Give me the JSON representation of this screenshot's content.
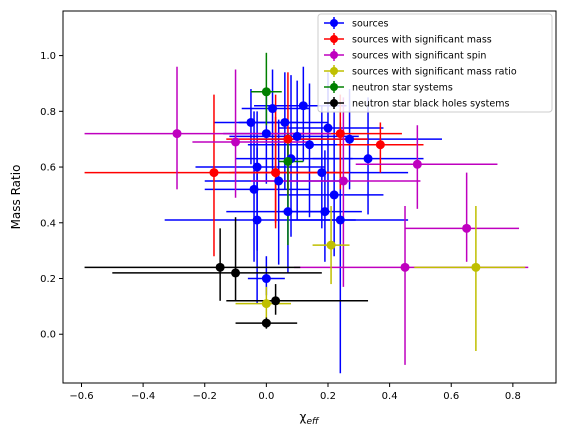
{
  "chart_data": {
    "type": "scatter",
    "title": "",
    "xlabel_base": "χ",
    "xlabel_sub": "eff",
    "ylabel": "Mass Ratio",
    "xlim": [
      -0.66,
      0.94
    ],
    "ylim": [
      -0.175,
      1.16
    ],
    "xticks": [
      -0.6,
      -0.4,
      -0.2,
      0.0,
      0.2,
      0.4,
      0.6,
      0.8
    ],
    "xtick_labels": [
      "−0.6",
      "−0.4",
      "−0.2",
      "0.0",
      "0.2",
      "0.4",
      "0.6",
      "0.8"
    ],
    "yticks": [
      0.0,
      0.2,
      0.4,
      0.6,
      0.8,
      1.0
    ],
    "ytick_labels": [
      "0.0",
      "0.2",
      "0.4",
      "0.6",
      "0.8",
      "1.0"
    ],
    "grid": false,
    "legend_position": "top-right",
    "series": [
      {
        "name": "sources",
        "color": "#0000ff",
        "points": [
          {
            "x": -0.05,
            "y": 0.76,
            "xlo": 0.12,
            "xhi": 0.15,
            "ylo": 0.15,
            "yhi": 0.12
          },
          {
            "x": 0.0,
            "y": 0.72,
            "xlo": 0.14,
            "xhi": 0.12,
            "ylo": 0.18,
            "yhi": 0.14
          },
          {
            "x": 0.02,
            "y": 0.81,
            "xlo": 0.1,
            "xhi": 0.12,
            "ylo": 0.22,
            "yhi": 0.14
          },
          {
            "x": 0.06,
            "y": 0.76,
            "xlo": 0.15,
            "xhi": 0.14,
            "ylo": 0.24,
            "yhi": 0.18
          },
          {
            "x": 0.1,
            "y": 0.71,
            "xlo": 0.22,
            "xhi": 0.2,
            "ylo": 0.3,
            "yhi": 0.2
          },
          {
            "x": 0.14,
            "y": 0.68,
            "xlo": 0.2,
            "xhi": 0.18,
            "ylo": 0.26,
            "yhi": 0.22
          },
          {
            "x": 0.2,
            "y": 0.74,
            "xlo": 0.16,
            "xhi": 0.18,
            "ylo": 0.3,
            "yhi": 0.2
          },
          {
            "x": 0.08,
            "y": 0.63,
            "xlo": 0.18,
            "xhi": 0.2,
            "ylo": 0.28,
            "yhi": 0.3
          },
          {
            "x": -0.03,
            "y": 0.6,
            "xlo": 0.2,
            "xhi": 0.22,
            "ylo": 0.3,
            "yhi": 0.2
          },
          {
            "x": 0.04,
            "y": 0.55,
            "xlo": 0.24,
            "xhi": 0.2,
            "ylo": 0.3,
            "yhi": 0.22
          },
          {
            "x": 0.18,
            "y": 0.58,
            "xlo": 0.3,
            "xhi": 0.28,
            "ylo": 0.2,
            "yhi": 0.24
          },
          {
            "x": -0.04,
            "y": 0.52,
            "xlo": 0.16,
            "xhi": 0.18,
            "ylo": 0.26,
            "yhi": 0.28
          },
          {
            "x": 0.22,
            "y": 0.5,
            "xlo": 0.18,
            "xhi": 0.16,
            "ylo": 0.22,
            "yhi": 0.3
          },
          {
            "x": 0.24,
            "y": 0.41,
            "xlo": 0.16,
            "xhi": 0.22,
            "ylo": 0.55,
            "yhi": 0.35
          },
          {
            "x": 0.19,
            "y": 0.44,
            "xlo": 0.14,
            "xhi": 0.12,
            "ylo": 0.18,
            "yhi": 0.22
          },
          {
            "x": 0.07,
            "y": 0.44,
            "xlo": 0.2,
            "xhi": 0.12,
            "ylo": 0.22,
            "yhi": 0.24
          },
          {
            "x": -0.03,
            "y": 0.41,
            "xlo": 0.3,
            "xhi": 0.32,
            "ylo": 0.3,
            "yhi": 0.26
          },
          {
            "x": 0.0,
            "y": 0.2,
            "xlo": 0.06,
            "xhi": 0.06,
            "ylo": 0.06,
            "yhi": 0.08
          },
          {
            "x": 0.33,
            "y": 0.63,
            "xlo": 0.18,
            "xhi": 0.18,
            "ylo": 0.2,
            "yhi": 0.22
          },
          {
            "x": 0.12,
            "y": 0.82,
            "xlo": 0.16,
            "xhi": 0.14,
            "ylo": 0.2,
            "yhi": 0.14
          },
          {
            "x": 0.27,
            "y": 0.7,
            "xlo": 0.3,
            "xhi": 0.3,
            "ylo": 0.18,
            "yhi": 0.18
          }
        ]
      },
      {
        "name": "sources with significant mass",
        "color": "#ff0000",
        "points": [
          {
            "x": -0.17,
            "y": 0.58,
            "xlo": 0.42,
            "xhi": 0.4,
            "ylo": 0.3,
            "yhi": 0.28
          },
          {
            "x": 0.03,
            "y": 0.58,
            "xlo": 0.14,
            "xhi": 0.22,
            "ylo": 0.2,
            "yhi": 0.2
          },
          {
            "x": 0.07,
            "y": 0.7,
            "xlo": 0.2,
            "xhi": 0.26,
            "ylo": 0.2,
            "yhi": 0.24
          },
          {
            "x": 0.24,
            "y": 0.72,
            "xlo": 0.16,
            "xhi": 0.2,
            "ylo": 0.2,
            "yhi": 0.14
          },
          {
            "x": 0.37,
            "y": 0.68,
            "xlo": 0.14,
            "xhi": 0.14,
            "ylo": 0.1,
            "yhi": 0.08
          },
          {
            "x": 0.03,
            "y": 0.58,
            "xlo": 0.2,
            "xhi": 0.24,
            "ylo": 0.18,
            "yhi": 0.28
          }
        ]
      },
      {
        "name": "sources with significant spin",
        "color": "#bf00bf",
        "points": [
          {
            "x": -0.29,
            "y": 0.72,
            "xlo": 0.3,
            "xhi": 0.5,
            "ylo": 0.2,
            "yhi": 0.24
          },
          {
            "x": -0.1,
            "y": 0.69,
            "xlo": 0.14,
            "xhi": 0.24,
            "ylo": 0.2,
            "yhi": 0.26
          },
          {
            "x": 0.25,
            "y": 0.55,
            "xlo": 0.3,
            "xhi": 0.25,
            "ylo": 0.38,
            "yhi": 0.3
          },
          {
            "x": 0.49,
            "y": 0.61,
            "xlo": 0.2,
            "xhi": 0.26,
            "ylo": 0.16,
            "yhi": 0.14
          },
          {
            "x": 0.65,
            "y": 0.38,
            "xlo": 0.2,
            "xhi": 0.17,
            "ylo": 0.12,
            "yhi": 0.2
          },
          {
            "x": 0.45,
            "y": 0.24,
            "xlo": 0.36,
            "xhi": 0.4,
            "ylo": 0.35,
            "yhi": 0.22
          }
        ]
      },
      {
        "name": "sources with significant mass ratio",
        "color": "#bfbf00",
        "points": [
          {
            "x": 0.21,
            "y": 0.32,
            "xlo": 0.06,
            "xhi": 0.06,
            "ylo": 0.14,
            "yhi": 0.14
          },
          {
            "x": 0.68,
            "y": 0.24,
            "xlo": 0.2,
            "xhi": 0.16,
            "ylo": 0.3,
            "yhi": 0.22
          },
          {
            "x": 0.0,
            "y": 0.11,
            "xlo": 0.1,
            "xhi": 0.08,
            "ylo": 0.06,
            "yhi": 0.06
          }
        ]
      },
      {
        "name": "neutron star systems",
        "color": "#008000",
        "points": [
          {
            "x": 0.0,
            "y": 0.87,
            "xlo": 0.05,
            "xhi": 0.05,
            "ylo": 0.12,
            "yhi": 0.14
          },
          {
            "x": 0.07,
            "y": 0.62,
            "xlo": 0.03,
            "xhi": 0.05,
            "ylo": 0.3,
            "yhi": 0.1
          }
        ]
      },
      {
        "name": "neutron star black holes systems",
        "color": "#000000",
        "points": [
          {
            "x": -0.15,
            "y": 0.24,
            "xlo": 0.44,
            "xhi": 0.26,
            "ylo": 0.12,
            "yhi": 0.14
          },
          {
            "x": -0.1,
            "y": 0.22,
            "xlo": 0.4,
            "xhi": 0.28,
            "ylo": 0.1,
            "yhi": 0.2
          },
          {
            "x": 0.03,
            "y": 0.12,
            "xlo": 0.16,
            "xhi": 0.3,
            "ylo": 0.05,
            "yhi": 0.06
          },
          {
            "x": 0.0,
            "y": 0.04,
            "xlo": 0.1,
            "xhi": 0.1,
            "ylo": 0.02,
            "yhi": 0.02
          }
        ]
      }
    ]
  }
}
